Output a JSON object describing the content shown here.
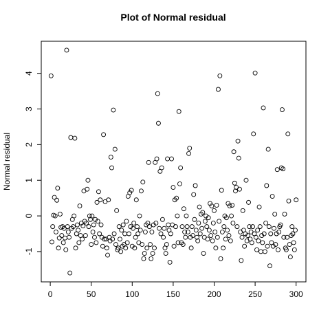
{
  "chart_data": {
    "type": "scatter",
    "title": "Plot of Normal residual",
    "ylabel": "Normal residual",
    "x": [
      1,
      2,
      3,
      4,
      5,
      6,
      7,
      8,
      9,
      10,
      11,
      12,
      13,
      14,
      15,
      16,
      17,
      18,
      19,
      20,
      21,
      22,
      23,
      24,
      25,
      26,
      27,
      28,
      29,
      30,
      31,
      32,
      33,
      34,
      35,
      36,
      37,
      38,
      39,
      40,
      41,
      42,
      43,
      44,
      45,
      46,
      47,
      48,
      49,
      50,
      51,
      52,
      53,
      54,
      55,
      56,
      57,
      58,
      59,
      60,
      61,
      62,
      63,
      64,
      65,
      66,
      67,
      68,
      69,
      70,
      71,
      72,
      73,
      74,
      75,
      76,
      77,
      78,
      79,
      80,
      81,
      82,
      83,
      84,
      85,
      86,
      87,
      88,
      89,
      90,
      91,
      92,
      93,
      94,
      95,
      96,
      97,
      98,
      99,
      100,
      101,
      102,
      103,
      104,
      105,
      106,
      107,
      108,
      109,
      110,
      111,
      112,
      113,
      114,
      115,
      116,
      117,
      118,
      119,
      120,
      121,
      122,
      123,
      124,
      125,
      126,
      127,
      128,
      129,
      130,
      131,
      132,
      133,
      134,
      135,
      136,
      137,
      138,
      139,
      140,
      141,
      142,
      143,
      144,
      145,
      146,
      147,
      148,
      149,
      150,
      151,
      152,
      153,
      154,
      155,
      156,
      157,
      158,
      159,
      160,
      161,
      162,
      163,
      164,
      165,
      166,
      167,
      168,
      169,
      170,
      171,
      172,
      173,
      174,
      175,
      176,
      177,
      178,
      179,
      180,
      181,
      182,
      183,
      184,
      185,
      186,
      187,
      188,
      189,
      190,
      191,
      192,
      193,
      194,
      195,
      196,
      197,
      198,
      199,
      200,
      201,
      202,
      203,
      204,
      205,
      206,
      207,
      208,
      209,
      210,
      211,
      212,
      213,
      214,
      215,
      216,
      217,
      218,
      219,
      220,
      221,
      222,
      223,
      224,
      225,
      226,
      227,
      228,
      229,
      230,
      231,
      232,
      233,
      234,
      235,
      236,
      237,
      238,
      239,
      240,
      241,
      242,
      243,
      244,
      245,
      246,
      247,
      248,
      249,
      250,
      251,
      252,
      253,
      254,
      255,
      256,
      257,
      258,
      259,
      260,
      261,
      262,
      263,
      264,
      265,
      266,
      267,
      268,
      269,
      270,
      271,
      272,
      273,
      274,
      275,
      276,
      277,
      278,
      279,
      280,
      281,
      282,
      283,
      284,
      285,
      286,
      287,
      288,
      289,
      290,
      291,
      292,
      293,
      294,
      295,
      296,
      297,
      298,
      299,
      300
    ],
    "values": [
      3.93,
      -0.73,
      -0.3,
      0.02,
      0.52,
      0.0,
      -0.45,
      0.44,
      0.78,
      -0.9,
      -0.62,
      0.05,
      -0.32,
      -0.55,
      -0.3,
      -0.75,
      -0.35,
      -0.62,
      -0.95,
      4.65,
      -0.3,
      -0.45,
      -0.6,
      -1.6,
      2.2,
      -0.35,
      -0.1,
      -0.3,
      0.0,
      2.18,
      -0.9,
      -0.5,
      -0.25,
      -0.4,
      -0.75,
      0.28,
      -0.55,
      -0.2,
      -0.65,
      -0.28,
      0.7,
      -0.15,
      -0.55,
      -0.2,
      0.75,
      1.0,
      -0.3,
      0.0,
      -0.1,
      -0.8,
      0.0,
      -0.45,
      -0.25,
      -0.6,
      -0.1,
      -0.75,
      0.38,
      -0.15,
      0.68,
      -0.5,
      0.45,
      -0.25,
      -0.6,
      -0.85,
      2.28,
      -0.65,
      0.4,
      -0.65,
      -0.9,
      -1.1,
      0.45,
      -0.6,
      -0.7,
      1.65,
      1.35,
      -0.65,
      2.97,
      -0.5,
      1.87,
      -0.8,
      0.15,
      -0.95,
      -0.9,
      -0.3,
      -0.65,
      -1.0,
      -0.4,
      -0.85,
      -0.25,
      -0.8,
      -0.5,
      -0.9,
      -0.15,
      -0.75,
      0.55,
      -0.5,
      0.65,
      -0.3,
      0.72,
      -0.85,
      -0.35,
      -0.2,
      -0.9,
      -0.6,
      0.45,
      -0.3,
      -0.5,
      -0.75,
      0.0,
      -0.4,
      0.7,
      -0.8,
      0.95,
      -1.2,
      -1.05,
      -0.45,
      -0.25,
      -0.9,
      -0.2,
      1.5,
      -0.3,
      -0.8,
      -1.2,
      -0.45,
      -1.05,
      -0.25,
      -0.9,
      1.5,
      -0.2,
      1.6,
      3.43,
      2.6,
      -0.35,
      1.25,
      -0.5,
      1.35,
      -0.1,
      -0.6,
      -0.35,
      -0.9,
      -1.05,
      -0.8,
      1.6,
      -0.25,
      -0.4,
      -1.3,
      -0.5,
      1.6,
      -0.25,
      0.8,
      -0.85,
      0.45,
      -0.3,
      0.5,
      0.0,
      -0.75,
      2.93,
      0.9,
      1.35,
      -0.75,
      -0.3,
      -0.8,
      0.2,
      -0.45,
      -0.6,
      0.0,
      -0.3,
      -0.45,
      1.75,
      1.9,
      -0.6,
      -0.9,
      -0.3,
      -0.55,
      0.6,
      -0.1,
      0.85,
      -0.4,
      -0.6,
      -0.7,
      -0.2,
      0.25,
      -0.5,
      0.05,
      -0.35,
      0.1,
      -1.05,
      -0.6,
      -0.15,
      0.0,
      -0.3,
      -0.65,
      -0.05,
      -0.4,
      0.35,
      -0.55,
      0.28,
      -0.7,
      -0.2,
      0.15,
      -0.45,
      -0.9,
      0.3,
      -0.6,
      3.55,
      -0.15,
      3.93,
      -1.2,
      0.72,
      -0.45,
      -0.9,
      -0.3,
      0.0,
      -0.65,
      -0.05,
      -0.4,
      0.35,
      -0.55,
      0.28,
      -0.7,
      0.0,
      0.3,
      -0.2,
      1.8,
      0.92,
      0.7,
      0.8,
      -0.3,
      2.1,
      1.62,
      0.75,
      -0.45,
      -1.25,
      -0.6,
      0.15,
      -0.4,
      -0.85,
      -0.5,
      1.0,
      -0.7,
      -0.55,
      0.38,
      -0.3,
      -0.65,
      -0.45,
      -0.75,
      -0.3,
      2.3,
      -0.5,
      4.01,
      -0.6,
      -0.95,
      -0.4,
      -0.7,
      0.25,
      -0.3,
      -1.0,
      -0.55,
      -0.75,
      3.03,
      -0.5,
      -1.0,
      -0.2,
      0.85,
      -0.85,
      1.87,
      -0.3,
      -1.4,
      -0.5,
      -0.75,
      0.55,
      -0.85,
      -0.35,
      0.05,
      -0.8,
      -0.5,
      1.3,
      -0.95,
      -0.45,
      -0.3,
      -0.25,
      1.35,
      2.98,
      1.32,
      -0.6,
      0.05,
      -0.9,
      -0.95,
      -0.6,
      2.3,
      0.42,
      -0.8,
      -1.15,
      -0.55,
      -0.3,
      -0.5,
      -0.75,
      -0.95,
      -0.4,
      0.45
    ],
    "color": "#000000",
    "xlim": [
      -11,
      312
    ],
    "xticks": [
      0,
      50,
      100,
      150,
      200,
      250,
      300
    ],
    "ylim": [
      -1.85,
      4.9
    ],
    "yticks": [
      -1,
      0,
      1,
      2,
      3,
      4
    ]
  }
}
